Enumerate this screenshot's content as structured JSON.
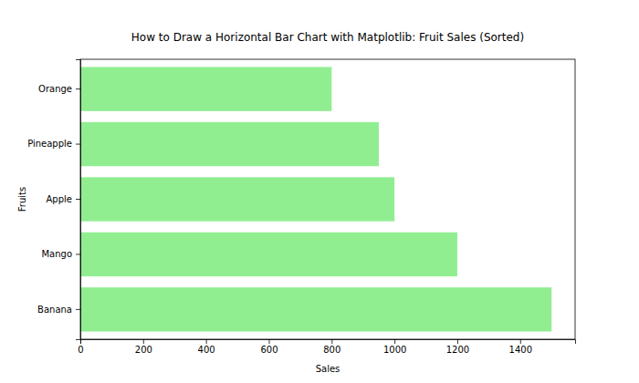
{
  "chart_data": {
    "type": "bar",
    "orientation": "horizontal",
    "title": "How to Draw a Horizontal Bar Chart with Matplotlib: Fruit Sales (Sorted)",
    "x_label": "Sales",
    "y_label": "Fruits",
    "categories": [
      "Banana",
      "Mango",
      "Apple",
      "Pineapple",
      "Orange"
    ],
    "values": [
      1500,
      1200,
      1000,
      950,
      800
    ],
    "color": "#90ee90",
    "xlim": [
      0,
      1575
    ],
    "xticks": [
      0,
      200,
      400,
      600,
      800,
      1000,
      1200,
      1400
    ],
    "grid": false
  }
}
